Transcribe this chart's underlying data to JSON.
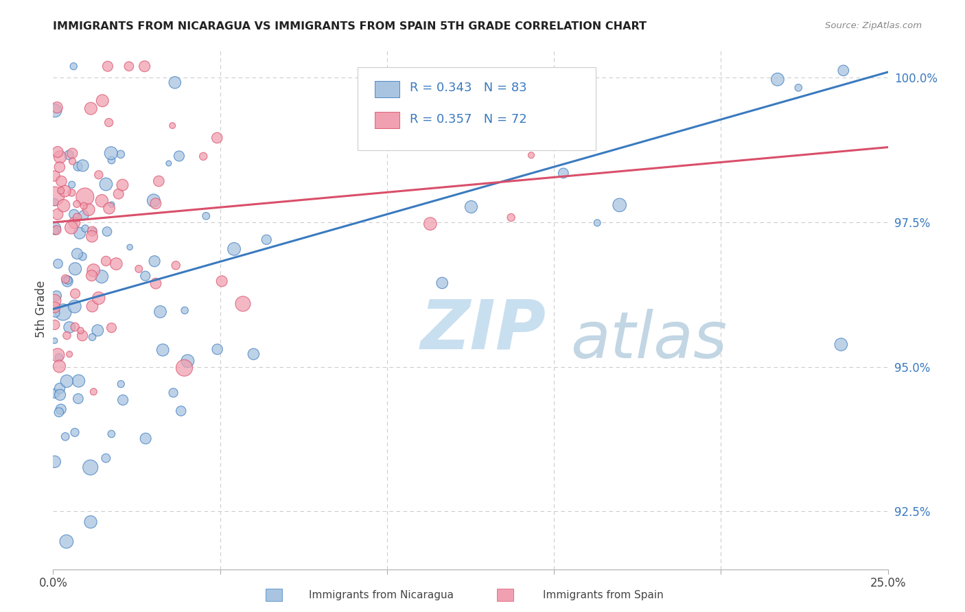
{
  "title": "IMMIGRANTS FROM NICARAGUA VS IMMIGRANTS FROM SPAIN 5TH GRADE CORRELATION CHART",
  "source": "Source: ZipAtlas.com",
  "ylabel": "5th Grade",
  "xlim": [
    0.0,
    0.25
  ],
  "ylim": [
    0.915,
    1.005
  ],
  "nicaragua_color": "#a8c4e0",
  "spain_color": "#f0a0b0",
  "nicaragua_line_color": "#3a7abf",
  "spain_line_color": "#d94f6a",
  "R_nicaragua": 0.343,
  "N_nicaragua": 83,
  "R_spain": 0.357,
  "N_spain": 72,
  "legend_text_color": "#3a7abf",
  "watermark_zip_color": "#c8dff0",
  "watermark_atlas_color": "#b8cfe0",
  "background_color": "#ffffff",
  "grid_color": "#cccccc",
  "nic_line_y0": 0.96,
  "nic_line_y1": 1.001,
  "spa_line_y0": 0.975,
  "spa_line_y1": 0.988,
  "y_ticks": [
    0.925,
    0.95,
    0.975,
    1.0
  ],
  "y_tick_labels": [
    "92.5%",
    "95.0%",
    "97.5%",
    "100.0%"
  ],
  "x_ticks": [
    0.0,
    0.05,
    0.1,
    0.15,
    0.2,
    0.25
  ],
  "x_tick_labels": [
    "0.0%",
    "",
    "",
    "",
    "",
    "25.0%"
  ]
}
